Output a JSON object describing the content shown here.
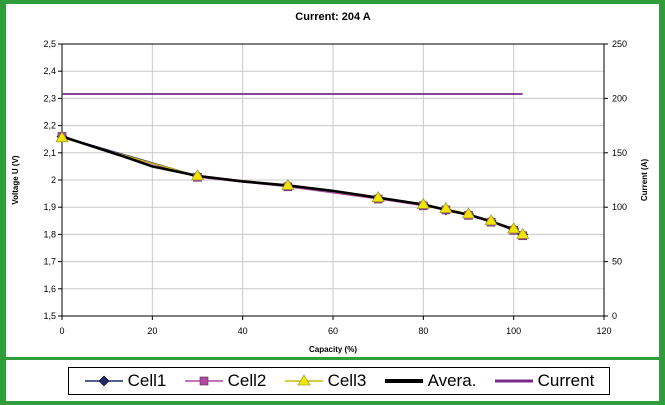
{
  "chart_data": {
    "type": "line",
    "title": "Current: 204 A",
    "xlabel": "Capacity (%)",
    "ylabel": "Voltage U (V)",
    "y2label": "Current (A)",
    "xlim": [
      0,
      120
    ],
    "ylim": [
      1.5,
      2.5
    ],
    "y2lim": [
      0,
      250
    ],
    "grid": true,
    "legend_position": "bottom",
    "x_ticks": [
      "0",
      "20",
      "40",
      "60",
      "80",
      "100",
      "120"
    ],
    "y_ticks": [
      "1,5",
      "1,6",
      "1,7",
      "1,8",
      "1,9",
      "2",
      "2,1",
      "2,2",
      "2,3",
      "2,4",
      "2,5"
    ],
    "y2_ticks": [
      "0",
      "50",
      "100",
      "150",
      "200",
      "250"
    ],
    "series": [
      {
        "name": "Cell1",
        "axis": "left",
        "marker": "diamond",
        "color": "#1f2a6b",
        "x": [
          0,
          30,
          50,
          70,
          80,
          85,
          90,
          95,
          100,
          102
        ],
        "values": [
          2.16,
          2.015,
          1.98,
          1.935,
          1.91,
          1.89,
          1.875,
          1.85,
          1.82,
          1.8
        ]
      },
      {
        "name": "Cell2",
        "axis": "left",
        "marker": "square",
        "color": "#b04a9e",
        "x": [
          0,
          30,
          50,
          70,
          80,
          85,
          90,
          95,
          100,
          102
        ],
        "values": [
          2.16,
          2.01,
          1.975,
          1.93,
          1.905,
          1.89,
          1.87,
          1.845,
          1.815,
          1.795
        ]
      },
      {
        "name": "Cell3",
        "axis": "left",
        "marker": "triangle",
        "color": "#f2e600",
        "x": [
          0,
          30,
          50,
          70,
          80,
          85,
          90,
          95,
          100,
          102
        ],
        "values": [
          2.155,
          2.015,
          1.98,
          1.935,
          1.91,
          1.895,
          1.875,
          1.85,
          1.82,
          1.8
        ]
      },
      {
        "name": "Avera.",
        "axis": "left",
        "marker": "none",
        "color": "#000000",
        "x": [
          0,
          13,
          20,
          30,
          40,
          50,
          60,
          70,
          80,
          85,
          90,
          95,
          100,
          102
        ],
        "values": [
          2.16,
          2.09,
          2.05,
          2.015,
          1.995,
          1.98,
          1.96,
          1.935,
          1.91,
          1.89,
          1.872,
          1.848,
          1.818,
          1.8
        ]
      },
      {
        "name": "Current",
        "axis": "right",
        "marker": "none",
        "color": "#7b2a8c",
        "x": [
          0,
          102
        ],
        "values": [
          204,
          204
        ]
      }
    ]
  }
}
